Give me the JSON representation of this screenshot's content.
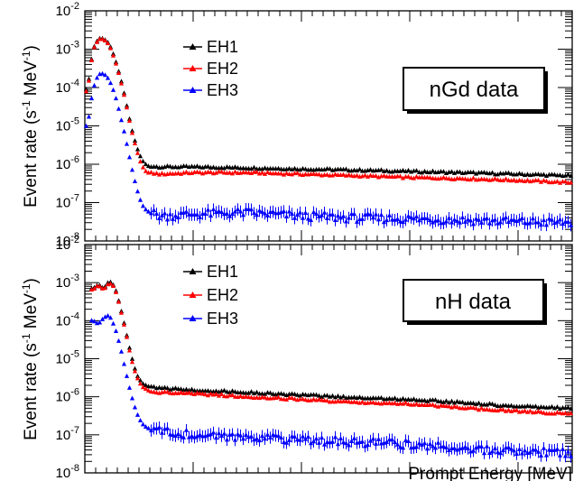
{
  "chart_data": [
    {
      "type": "scatter",
      "panel": "top",
      "annotation": "nGd data",
      "ylabel": "Event rate (s^-1 MeV^-1)",
      "xlim": [
        0,
        90
      ],
      "ylim": [
        1e-08,
        0.01
      ],
      "yscale": "log",
      "xticks": [
        0,
        20,
        40,
        60,
        80
      ],
      "yticks": [
        1e-08,
        1e-07,
        1e-06,
        1e-05,
        0.0001,
        0.001,
        0.01
      ],
      "ytick_labels": [
        {
          "base": "10",
          "exp": "-8"
        },
        {
          "base": "10",
          "exp": "-7"
        },
        {
          "base": "10",
          "exp": "-6"
        },
        {
          "base": "10",
          "exp": "-5"
        },
        {
          "base": "10",
          "exp": "-4"
        },
        {
          "base": "10",
          "exp": "-3"
        },
        {
          "base": "10",
          "exp": "-2"
        }
      ],
      "legend_position": "upper-center",
      "series": [
        {
          "name": "EH1",
          "color": "#000000",
          "marker": "triangle-up",
          "x": [
            0.5,
            1.5,
            2.5,
            3.5,
            4.5,
            5.5,
            6.5,
            7.5,
            8.5,
            9.5,
            10.5,
            11.5,
            14,
            20,
            30,
            40,
            50,
            60,
            70,
            80,
            90
          ],
          "y": [
            9e-05,
            0.001,
            0.0019,
            0.0019,
            0.0014,
            0.0006,
            0.0002,
            5e-05,
            1e-05,
            3e-06,
            1.3e-06,
            9e-07,
            8.5e-07,
            8.5e-07,
            8e-07,
            7.5e-07,
            7e-07,
            6.5e-07,
            6e-07,
            5.5e-07,
            5e-07
          ]
        },
        {
          "name": "EH2",
          "color": "#ff0000",
          "marker": "triangle-up",
          "x": [
            0.5,
            1.5,
            2.5,
            3.5,
            4.5,
            5.5,
            6.5,
            7.5,
            8.5,
            9.5,
            10.5,
            11.5,
            14,
            20,
            30,
            40,
            50,
            60,
            70,
            80,
            90
          ],
          "y": [
            8e-05,
            0.00095,
            0.0018,
            0.0018,
            0.0013,
            0.00055,
            0.00018,
            4.5e-05,
            9e-06,
            2.5e-06,
            9e-07,
            6e-07,
            5.5e-07,
            6e-07,
            6e-07,
            5.5e-07,
            5e-07,
            4.5e-07,
            4.2e-07,
            3.8e-07,
            3.3e-07
          ]
        },
        {
          "name": "EH3",
          "color": "#0000ff",
          "marker": "triangle-up",
          "x": [
            0.5,
            1.5,
            2.5,
            3.5,
            4.5,
            5.5,
            6.5,
            7.5,
            8.5,
            9.5,
            10.5,
            11.5,
            14,
            20,
            30,
            40,
            50,
            60,
            70,
            80,
            90
          ],
          "y": [
            1e-05,
            9e-05,
            0.00022,
            0.00023,
            0.00016,
            7e-05,
            2e-05,
            5e-06,
            1e-06,
            2.5e-07,
            9e-08,
            6e-08,
            4.5e-08,
            5e-08,
            5.5e-08,
            4.5e-08,
            4e-08,
            3.8e-08,
            3.5e-08,
            3.2e-08,
            3e-08
          ]
        }
      ]
    },
    {
      "type": "scatter",
      "panel": "bottom",
      "annotation": "nH data",
      "xlabel": "Prompt Energy [MeV]",
      "ylabel": "Event rate (s^-1 MeV^-1)",
      "xlim": [
        0,
        90
      ],
      "ylim": [
        1e-08,
        0.01
      ],
      "yscale": "log",
      "xticks": [
        0,
        20,
        40,
        60,
        80
      ],
      "yticks": [
        1e-08,
        1e-07,
        1e-06,
        1e-05,
        0.0001,
        0.001,
        0.01
      ],
      "ytick_labels": [
        {
          "base": "10",
          "exp": "-8"
        },
        {
          "base": "10",
          "exp": "-7"
        },
        {
          "base": "10",
          "exp": "-6"
        },
        {
          "base": "10",
          "exp": "-5"
        },
        {
          "base": "10",
          "exp": "-4"
        },
        {
          "base": "10",
          "exp": "-3"
        },
        {
          "base": "10",
          "exp": "-2"
        }
      ],
      "legend_position": "upper-center",
      "series": [
        {
          "name": "EH1",
          "color": "#000000",
          "marker": "triangle-up",
          "x": [
            1.5,
            2.5,
            3.5,
            4.5,
            5.5,
            6.5,
            7.5,
            8.5,
            9.5,
            10.5,
            11.5,
            13,
            20,
            30,
            40,
            50,
            60,
            70,
            80,
            90
          ],
          "y": [
            0.0007,
            0.0009,
            0.0007,
            0.0011,
            0.0008,
            0.00025,
            6e-05,
            1.3e-05,
            4e-06,
            2.3e-06,
            1.9e-06,
            1.7e-06,
            1.5e-06,
            1.3e-06,
            1.1e-06,
            9.5e-07,
            8.5e-07,
            7e-07,
            5.5e-07,
            5e-07
          ]
        },
        {
          "name": "EH2",
          "color": "#ff0000",
          "marker": "triangle-up",
          "x": [
            1.5,
            2.5,
            3.5,
            4.5,
            5.5,
            6.5,
            7.5,
            8.5,
            9.5,
            10.5,
            11.5,
            13,
            20,
            30,
            40,
            50,
            60,
            70,
            80,
            90
          ],
          "y": [
            0.00065,
            0.00085,
            0.00065,
            0.001,
            0.00075,
            0.00023,
            5.5e-05,
            1.1e-05,
            3.5e-06,
            1.9e-06,
            1.5e-06,
            1.3e-06,
            1.2e-06,
            1e-06,
            8.5e-07,
            7e-07,
            6.5e-07,
            5e-07,
            4.2e-07,
            3.5e-07
          ]
        },
        {
          "name": "EH3",
          "color": "#0000ff",
          "marker": "triangle-up",
          "x": [
            1.5,
            2.5,
            3.5,
            4.5,
            5.5,
            6.5,
            7.5,
            8.5,
            9.5,
            10.5,
            11.5,
            13,
            20,
            30,
            40,
            50,
            60,
            70,
            80,
            90
          ],
          "y": [
            0.0001,
            8e-05,
            0.00012,
            0.00014,
            7e-05,
            2.2e-05,
            5e-06,
            1.2e-06,
            4e-07,
            2e-07,
            1.5e-07,
            1.3e-07,
            1e-07,
            9e-08,
            7.5e-08,
            6.5e-08,
            5.5e-08,
            4.5e-08,
            3.8e-08,
            3.3e-08
          ]
        }
      ]
    }
  ]
}
